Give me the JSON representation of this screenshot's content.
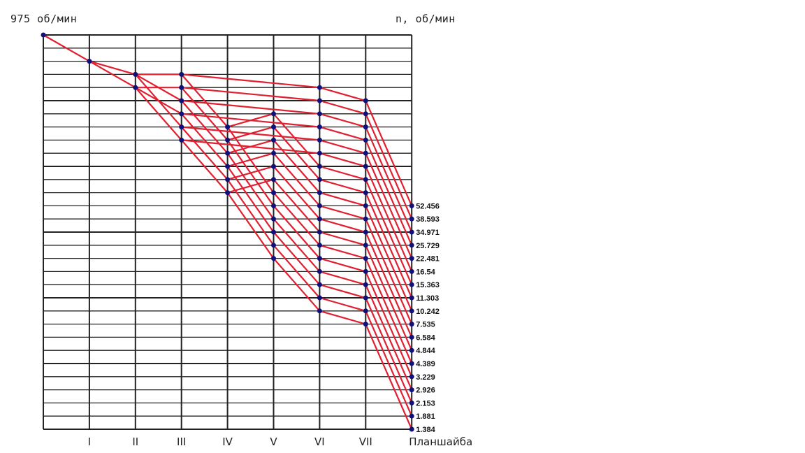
{
  "header": {
    "input_speed": "975 об/мин",
    "axis_title": "n, об/мин"
  },
  "colors": {
    "grid": "#222222",
    "ray": "#e02030",
    "node": "#10107a"
  },
  "levels_count": 30,
  "shafts": [
    {
      "label": "",
      "levels": [
        0
      ]
    },
    {
      "label": "I",
      "levels": [
        2
      ]
    },
    {
      "label": "II",
      "levels": [
        3,
        4
      ]
    },
    {
      "label": "III",
      "levels": [
        3,
        4,
        5,
        6,
        7,
        8
      ]
    },
    {
      "label": "IV",
      "levels": [
        7,
        8,
        9,
        10,
        11,
        12
      ]
    },
    {
      "label": "V",
      "levels": [
        6,
        7,
        8,
        9,
        10,
        11,
        12,
        13,
        14,
        15,
        16,
        17
      ]
    },
    {
      "label": "VI",
      "levels": [
        4,
        5,
        6,
        7,
        8,
        9,
        10,
        11,
        12,
        13,
        14,
        15,
        16,
        17,
        18,
        19,
        20,
        21
      ]
    },
    {
      "label": "VII",
      "levels": [
        5,
        6,
        7,
        8,
        9,
        10,
        11,
        12,
        13,
        14,
        15,
        16,
        17,
        18,
        19,
        20,
        21,
        22
      ]
    },
    {
      "label": "Планшайба",
      "levels": [
        13,
        14,
        15,
        16,
        17,
        18,
        19,
        20,
        21,
        22,
        23,
        24,
        25,
        26,
        27,
        28,
        29,
        30
      ]
    }
  ],
  "spindle_speeds": [
    "52.456",
    "38.593",
    "34.971",
    "25.729",
    "22.481",
    "16.54",
    "15.363",
    "11.303",
    "10.242",
    "7.535",
    "6.584",
    "4.844",
    "4.389",
    "3.229",
    "2.926",
    "2.153",
    "1.881",
    "1.384"
  ]
}
